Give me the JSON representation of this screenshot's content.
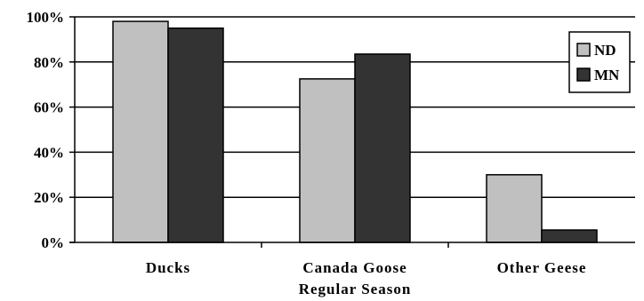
{
  "chart_data": {
    "type": "bar",
    "categories": [
      "Ducks",
      "Canada Goose Regular Season",
      "Other Geese"
    ],
    "category_lines": [
      [
        "Ducks"
      ],
      [
        "Canada Goose",
        "Regular Season"
      ],
      [
        "Other Geese"
      ]
    ],
    "series": [
      {
        "name": "ND",
        "color": "#c0c0c0",
        "values": [
          98,
          72.5,
          30
        ]
      },
      {
        "name": "MN",
        "color": "#333333",
        "values": [
          95,
          83.5,
          5.5
        ]
      }
    ],
    "y_ticks": [
      "0%",
      "20%",
      "40%",
      "60%",
      "80%",
      "100%"
    ],
    "ylim": [
      0,
      100
    ],
    "grid": true,
    "legend": "top-right",
    "title": "",
    "xlabel": "",
    "ylabel": ""
  }
}
